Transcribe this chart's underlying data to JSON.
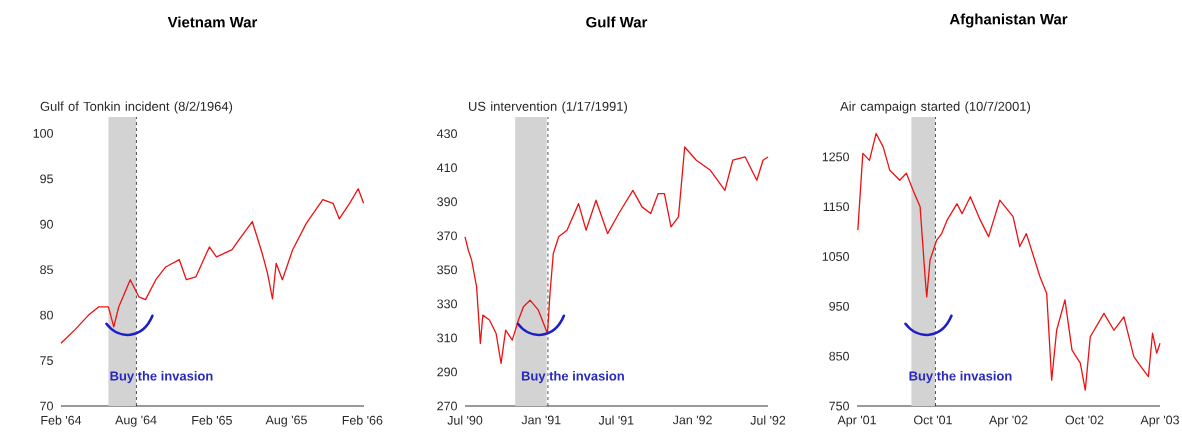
{
  "chart_data": [
    {
      "type": "line",
      "title": "Vietnam War",
      "color": "#ee1111",
      "marker": "none",
      "x": [
        "1964-02-01",
        "1964-03-06",
        "1964-04-08",
        "1964-05-02",
        "1964-05-26",
        "1964-06-08",
        "1964-06-20",
        "1964-07-18",
        "1964-08-08",
        "1964-08-24",
        "1964-09-18",
        "1964-10-12",
        "1964-11-14",
        "1964-12-01",
        "1964-12-24",
        "1965-01-26",
        "1965-02-12",
        "1965-03-22",
        "1965-04-08",
        "1965-05-10",
        "1965-06-03",
        "1965-06-16",
        "1965-06-28",
        "1965-07-07",
        "1965-07-22",
        "1965-08-16",
        "1965-09-18",
        "1965-10-28",
        "1965-11-22",
        "1965-12-07",
        "1966-01-01",
        "1966-01-22",
        "1966-02-04"
      ],
      "values": [
        76.9,
        78.4,
        80.0,
        80.9,
        80.9,
        78.7,
        80.9,
        83.9,
        82.0,
        81.7,
        83.9,
        85.3,
        86.1,
        83.9,
        84.2,
        87.5,
        86.4,
        87.2,
        88.3,
        90.3,
        86.8,
        84.6,
        81.8,
        85.7,
        83.9,
        87.2,
        90.1,
        92.7,
        92.3,
        90.6,
        92.3,
        93.9,
        92.3
      ],
      "xlim": [
        "1964-02-01",
        "1966-02-05"
      ],
      "ylim": [
        70,
        101.8
      ],
      "xticks": [
        {
          "value": "1964-02-01",
          "label": "Feb '64"
        },
        {
          "value": "1964-08-01",
          "label": "Aug '64"
        },
        {
          "value": "1965-02-01",
          "label": "Feb '65"
        },
        {
          "value": "1965-08-01",
          "label": "Aug '65"
        },
        {
          "value": "1966-02-01",
          "label": "Feb '66"
        }
      ],
      "yticks": [
        70,
        75,
        80,
        85,
        90,
        95,
        100
      ],
      "bands": [
        {
          "axis": "x",
          "from": "1964-05-26",
          "to": "1964-08-01",
          "color": "#d3d3d3"
        }
      ],
      "ref_lines": [
        {
          "axis": "x",
          "value": "1964-08-02",
          "label": "Gulf of Tonkin incident (8/2/1964)",
          "color": "#000000",
          "line_style": "dashed"
        }
      ],
      "annotations": [
        "Buy the invasion"
      ]
    },
    {
      "type": "line",
      "title": "Gulf War",
      "color": "#ee1111",
      "marker": "none",
      "x": [
        "1990-07-01",
        "1990-07-09",
        "1990-07-17",
        "1990-07-29",
        "1990-08-07",
        "1990-08-13",
        "1990-08-29",
        "1990-09-14",
        "1990-09-26",
        "1990-10-07",
        "1990-10-23",
        "1990-11-07",
        "1990-11-19",
        "1990-12-05",
        "1990-12-25",
        "1991-01-16",
        "1991-01-22",
        "1991-01-30",
        "1991-02-12",
        "1991-03-04",
        "1991-04-01",
        "1991-04-19",
        "1991-05-13",
        "1991-06-10",
        "1991-07-07",
        "1991-08-10",
        "1991-09-01",
        "1991-09-22",
        "1991-10-10",
        "1991-10-25",
        "1991-11-10",
        "1991-11-28",
        "1991-12-13",
        "1992-01-10",
        "1992-02-13",
        "1992-03-19",
        "1992-04-07",
        "1992-05-07",
        "1992-06-04",
        "1992-06-19",
        "1992-07-01"
      ],
      "values": [
        369.4,
        361.5,
        355.7,
        340,
        306.8,
        323.4,
        320.5,
        312.6,
        295,
        314.6,
        308.7,
        320.5,
        328.3,
        332.2,
        326.3,
        312.6,
        336.1,
        359.6,
        369.4,
        373.3,
        388.9,
        373.3,
        390.9,
        371.3,
        383.1,
        396.7,
        387.0,
        383.1,
        394.8,
        394.8,
        375.2,
        381.1,
        422.2,
        414.4,
        408.5,
        396.7,
        414.4,
        416.3,
        402.6,
        414.4,
        416.3
      ],
      "xlim": [
        "1990-07-01",
        "1992-07-01"
      ],
      "ylim": [
        270,
        439.8
      ],
      "xticks": [
        {
          "value": "1990-07-01",
          "label": "Jul '90"
        },
        {
          "value": "1991-01-01",
          "label": "Jan '91"
        },
        {
          "value": "1991-07-01",
          "label": "Jul '91"
        },
        {
          "value": "1992-01-01",
          "label": "Jan '92"
        },
        {
          "value": "1992-07-01",
          "label": "Jul '92"
        }
      ],
      "yticks": [
        270,
        290,
        310,
        330,
        350,
        370,
        390,
        410,
        430
      ],
      "bands": [
        {
          "axis": "x",
          "from": "1990-10-30",
          "to": "1991-01-14",
          "color": "#d3d3d3"
        }
      ],
      "ref_lines": [
        {
          "axis": "x",
          "value": "1991-01-17",
          "label": "US intervention (1/17/1991)",
          "color": "#000000",
          "line_style": "dashed"
        }
      ],
      "annotations": [
        "Buy the invasion"
      ]
    },
    {
      "type": "line",
      "title": "Afghanistan War",
      "color": "#ee1111",
      "marker": "none",
      "x": [
        "2001-04-03",
        "2001-04-15",
        "2001-05-01",
        "2001-05-17",
        "2001-06-03",
        "2001-06-19",
        "2001-07-13",
        "2001-07-29",
        "2001-08-14",
        "2001-08-31",
        "2001-09-12",
        "2001-09-16",
        "2001-09-24",
        "2001-10-10",
        "2001-10-22",
        "2001-11-04",
        "2001-11-28",
        "2001-12-10",
        "2001-12-30",
        "2002-01-23",
        "2002-02-12",
        "2002-03-11",
        "2002-04-12",
        "2002-04-28",
        "2002-05-14",
        "2002-06-16",
        "2002-07-02",
        "2002-07-14",
        "2002-07-26",
        "2002-08-15",
        "2002-09-01",
        "2002-09-21",
        "2002-10-03",
        "2002-10-15",
        "2002-11-17",
        "2002-12-11",
        "2003-01-04",
        "2003-01-28",
        "2003-02-14",
        "2003-03-04",
        "2003-03-14",
        "2003-03-24",
        "2003-04-01"
      ],
      "values": [
        1103,
        1257,
        1243,
        1297,
        1270,
        1223,
        1203,
        1217,
        1183,
        1150,
        1009,
        969,
        1043,
        1083,
        1096,
        1123,
        1156,
        1136,
        1170,
        1123,
        1090,
        1163,
        1130,
        1070,
        1096,
        1009,
        976,
        802,
        902,
        963,
        862,
        836,
        782,
        889,
        936,
        902,
        929,
        849,
        829,
        809,
        896,
        856,
        876
      ],
      "xlim": [
        "2001-04-01",
        "2003-04-01"
      ],
      "ylim": [
        750,
        1330
      ],
      "xticks": [
        {
          "value": "2001-04-01",
          "label": "Apr '01"
        },
        {
          "value": "2001-10-01",
          "label": "Oct '01"
        },
        {
          "value": "2002-04-01",
          "label": "Apr '02"
        },
        {
          "value": "2002-10-01",
          "label": "Oct '02"
        },
        {
          "value": "2003-04-01",
          "label": "Apr '03"
        }
      ],
      "yticks": [
        750,
        850,
        950,
        1050,
        1150,
        1250
      ],
      "bands": [
        {
          "axis": "x",
          "from": "2001-08-10",
          "to": "2001-10-06",
          "color": "#d3d3d3"
        }
      ],
      "ref_lines": [
        {
          "axis": "x",
          "value": "2001-10-07",
          "label": "Air campaign started (10/7/2001)",
          "color": "#000000",
          "line_style": "dashed"
        }
      ],
      "annotations": [
        "Buy the invasion"
      ]
    }
  ]
}
